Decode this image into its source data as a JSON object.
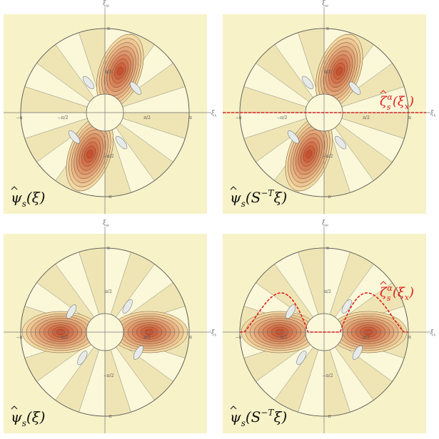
{
  "colors": {
    "background": "#f7f2c7",
    "band": "#efe5b4",
    "ring_fill": "#fbf7d9",
    "axis": "#7a7a7a",
    "lobe_outer": "#f3d9a4",
    "lobe_inner": "#c9502f",
    "negative_lobe": "#e6ebe9",
    "curve": "#dd1f1f"
  },
  "axis_labels": {
    "horizontal": "ξ",
    "horizontal_sub": "x",
    "vertical": "ξ",
    "vertical_sub": "ω"
  },
  "tick_labels": {
    "pi": "π",
    "neg_pi": "−π",
    "half_pi": "π/2",
    "neg_half_pi": "−π/2"
  },
  "panels": [
    {
      "id": "top-left",
      "formula": {
        "hat": "ψ",
        "sub": "s",
        "arg": "(ξ)"
      },
      "lobe_angle_deg": 70,
      "curve": "none",
      "curve_label": null
    },
    {
      "id": "top-right",
      "formula": {
        "hat": "ψ",
        "sub": "s",
        "arg": "(S",
        "sup": "−T",
        "arg2": "ξ)"
      },
      "lobe_angle_deg": 70,
      "curve": "flat",
      "curve_label": {
        "hat": "ζ",
        "sub": "s",
        "sup": "α",
        "arg": "(ξ",
        "argsub": "x",
        "close": ")"
      }
    },
    {
      "id": "bottom-left",
      "formula": {
        "hat": "ψ",
        "sub": "s",
        "arg": "(ξ)"
      },
      "lobe_angle_deg": 0,
      "curve": "none",
      "curve_label": null
    },
    {
      "id": "bottom-right",
      "formula": {
        "hat": "ψ",
        "sub": "s",
        "arg": "(S",
        "sup": "−T",
        "arg2": "ξ)"
      },
      "lobe_angle_deg": 0,
      "curve": "bumps",
      "curve_label": {
        "hat": "ζ",
        "sub": "s",
        "sup": "α",
        "arg": "(ξ",
        "argsub": "x",
        "close": ")"
      }
    }
  ]
}
